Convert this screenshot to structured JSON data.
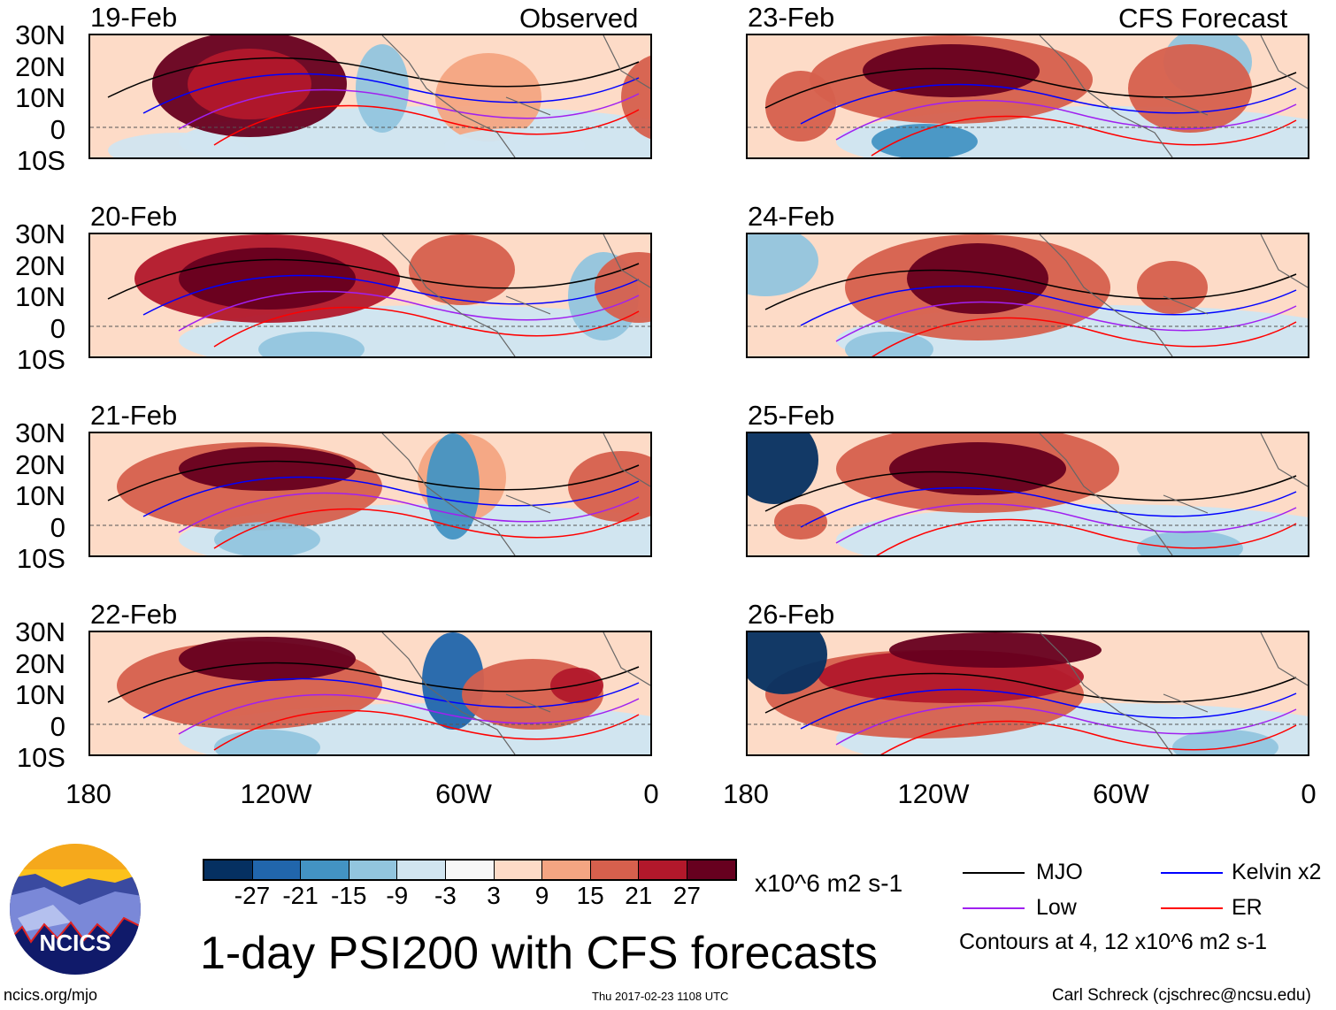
{
  "header": {
    "left_label": "Observed",
    "right_label": "CFS Forecast"
  },
  "panels": [
    {
      "date": "19-Feb"
    },
    {
      "date": "20-Feb"
    },
    {
      "date": "21-Feb"
    },
    {
      "date": "22-Feb"
    },
    {
      "date": "23-Feb"
    },
    {
      "date": "24-Feb"
    },
    {
      "date": "25-Feb"
    },
    {
      "date": "26-Feb"
    }
  ],
  "lat_labels": [
    "30N",
    "20N",
    "10N",
    "0",
    "10S"
  ],
  "lon_labels": [
    "180",
    "120W",
    "60W",
    "0"
  ],
  "colorbar": {
    "colors": [
      "#053061",
      "#2166ac",
      "#4393c3",
      "#92c5de",
      "#d1e5f0",
      "#f7f7f7",
      "#fddbc7",
      "#f4a582",
      "#d6604d",
      "#b2182b",
      "#67001f"
    ],
    "labels": [
      "-27",
      "-21",
      "-15",
      "-9",
      "-3",
      "3",
      "9",
      "15",
      "21",
      "27"
    ],
    "units": "x10^6 m2 s-1"
  },
  "title": "1-day PSI200 with CFS forecasts",
  "legend": {
    "items": [
      {
        "label": "MJO",
        "color": "#000000"
      },
      {
        "label": "Kelvin x2",
        "color": "#0000ff"
      },
      {
        "label": "Low",
        "color": "#a020f0"
      },
      {
        "label": "ER",
        "color": "#ff0000"
      }
    ],
    "note": "Contours at 4, 12 x10^6 m2 s-1"
  },
  "logo": {
    "text": "NCICS"
  },
  "footer": {
    "url": "ncics.org/mjo",
    "timestamp": "Thu 2017-02-23 1108 UTC",
    "author": "Carl Schreck (cjschrec@ncsu.edu)"
  }
}
